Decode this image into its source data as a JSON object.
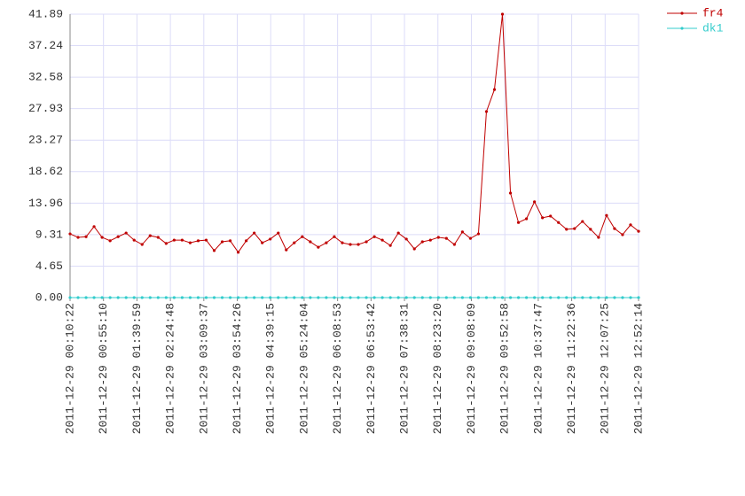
{
  "chart_data": {
    "type": "line",
    "x": [
      "2011-12-29 00:10:22",
      "2011-12-29 00:21:06",
      "2011-12-29 00:31:50",
      "2011-12-29 00:42:33",
      "2011-12-29 00:53:17",
      "2011-12-29 01:04:01",
      "2011-12-29 01:14:45",
      "2011-12-29 01:25:29",
      "2011-12-29 01:36:13",
      "2011-12-29 01:46:56",
      "2011-12-29 01:57:40",
      "2011-12-29 02:08:24",
      "2011-12-29 02:19:08",
      "2011-12-29 02:29:52",
      "2011-12-29 02:40:36",
      "2011-12-29 02:51:19",
      "2011-12-29 03:02:03",
      "2011-12-29 03:12:47",
      "2011-12-29 03:23:31",
      "2011-12-29 03:34:15",
      "2011-12-29 03:44:59",
      "2011-12-29 03:55:42",
      "2011-12-29 04:06:26",
      "2011-12-29 04:17:10",
      "2011-12-29 04:27:54",
      "2011-12-29 04:38:38",
      "2011-12-29 04:49:22",
      "2011-12-29 05:00:05",
      "2011-12-29 05:10:49",
      "2011-12-29 05:21:33",
      "2011-12-29 05:32:17",
      "2011-12-29 05:43:01",
      "2011-12-29 05:53:45",
      "2011-12-29 06:04:28",
      "2011-12-29 06:15:12",
      "2011-12-29 06:25:56",
      "2011-12-29 06:36:40",
      "2011-12-29 06:47:24",
      "2011-12-29 06:58:08",
      "2011-12-29 07:08:51",
      "2011-12-29 07:19:35",
      "2011-12-29 07:30:19",
      "2011-12-29 07:41:03",
      "2011-12-29 07:51:47",
      "2011-12-29 08:02:31",
      "2011-12-29 08:13:14",
      "2011-12-29 08:23:58",
      "2011-12-29 08:34:42",
      "2011-12-29 08:45:26",
      "2011-12-29 08:56:10",
      "2011-12-29 09:06:54",
      "2011-12-29 09:17:37",
      "2011-12-29 09:28:21",
      "2011-12-29 09:39:05",
      "2011-12-29 09:49:49",
      "2011-12-29 10:00:33",
      "2011-12-29 10:11:16",
      "2011-12-29 10:22:00",
      "2011-12-29 10:32:44",
      "2011-12-29 10:43:28",
      "2011-12-29 10:54:12",
      "2011-12-29 11:04:56",
      "2011-12-29 11:15:39",
      "2011-12-29 11:26:23",
      "2011-12-29 11:37:07",
      "2011-12-29 11:47:51",
      "2011-12-29 11:58:35",
      "2011-12-29 12:09:19",
      "2011-12-29 12:20:02",
      "2011-12-29 12:30:46",
      "2011-12-29 12:41:30",
      "2011-12-29 12:52:14"
    ],
    "series": [
      {
        "name": "fr4",
        "color": "#c00000",
        "values": [
          9.42,
          8.9,
          9.0,
          10.5,
          8.9,
          8.4,
          9.0,
          9.55,
          8.5,
          7.85,
          9.15,
          8.9,
          8.0,
          8.5,
          8.5,
          8.1,
          8.4,
          8.5,
          6.95,
          8.25,
          8.4,
          6.7,
          8.4,
          9.55,
          8.1,
          8.65,
          9.55,
          7.05,
          8.1,
          9.0,
          8.25,
          7.45,
          8.1,
          9.0,
          8.1,
          7.85,
          7.85,
          8.25,
          9.0,
          8.5,
          7.7,
          9.55,
          8.65,
          7.2,
          8.25,
          8.5,
          8.9,
          8.75,
          7.85,
          9.7,
          8.75,
          9.42,
          27.5,
          30.75,
          41.89,
          15.45,
          11.1,
          11.65,
          14.15,
          11.8,
          12.05,
          11.1,
          10.1,
          10.2,
          11.25,
          10.1,
          8.9,
          12.15,
          10.2,
          9.3,
          10.75,
          9.8
        ]
      },
      {
        "name": "dk1",
        "color": "#33cccc",
        "values": [
          0,
          0,
          0,
          0,
          0,
          0,
          0,
          0,
          0,
          0,
          0,
          0,
          0,
          0,
          0,
          0,
          0,
          0,
          0,
          0,
          0,
          0,
          0,
          0,
          0,
          0,
          0,
          0,
          0,
          0,
          0,
          0,
          0,
          0,
          0,
          0,
          0,
          0,
          0,
          0,
          0,
          0,
          0,
          0,
          0,
          0,
          0,
          0,
          0,
          0,
          0,
          0,
          0,
          0,
          0,
          0,
          0,
          0,
          0,
          0,
          0,
          0,
          0,
          0,
          0,
          0,
          0,
          0,
          0,
          0,
          0,
          0
        ]
      }
    ],
    "xlim": [
      "2011-12-29 00:10:22",
      "2011-12-29 12:52:14"
    ],
    "xticks": [
      "2011-12-29 00:10:22",
      "2011-12-29 00:55:10",
      "2011-12-29 01:39:59",
      "2011-12-29 02:24:48",
      "2011-12-29 03:09:37",
      "2011-12-29 03:54:26",
      "2011-12-29 04:39:15",
      "2011-12-29 05:24:04",
      "2011-12-29 06:08:53",
      "2011-12-29 06:53:42",
      "2011-12-29 07:38:31",
      "2011-12-29 08:23:20",
      "2011-12-29 09:08:09",
      "2011-12-29 09:52:58",
      "2011-12-29 10:37:47",
      "2011-12-29 11:22:36",
      "2011-12-29 12:07:25",
      "2011-12-29 12:52:14"
    ],
    "ylim": [
      0,
      41.89
    ],
    "yticks": [
      {
        "value": 0,
        "label": "0.00"
      },
      4.65,
      9.31,
      13.96,
      18.62,
      23.27,
      27.93,
      32.58,
      37.24,
      41.89
    ],
    "grid": true,
    "legend": "top-right"
  }
}
